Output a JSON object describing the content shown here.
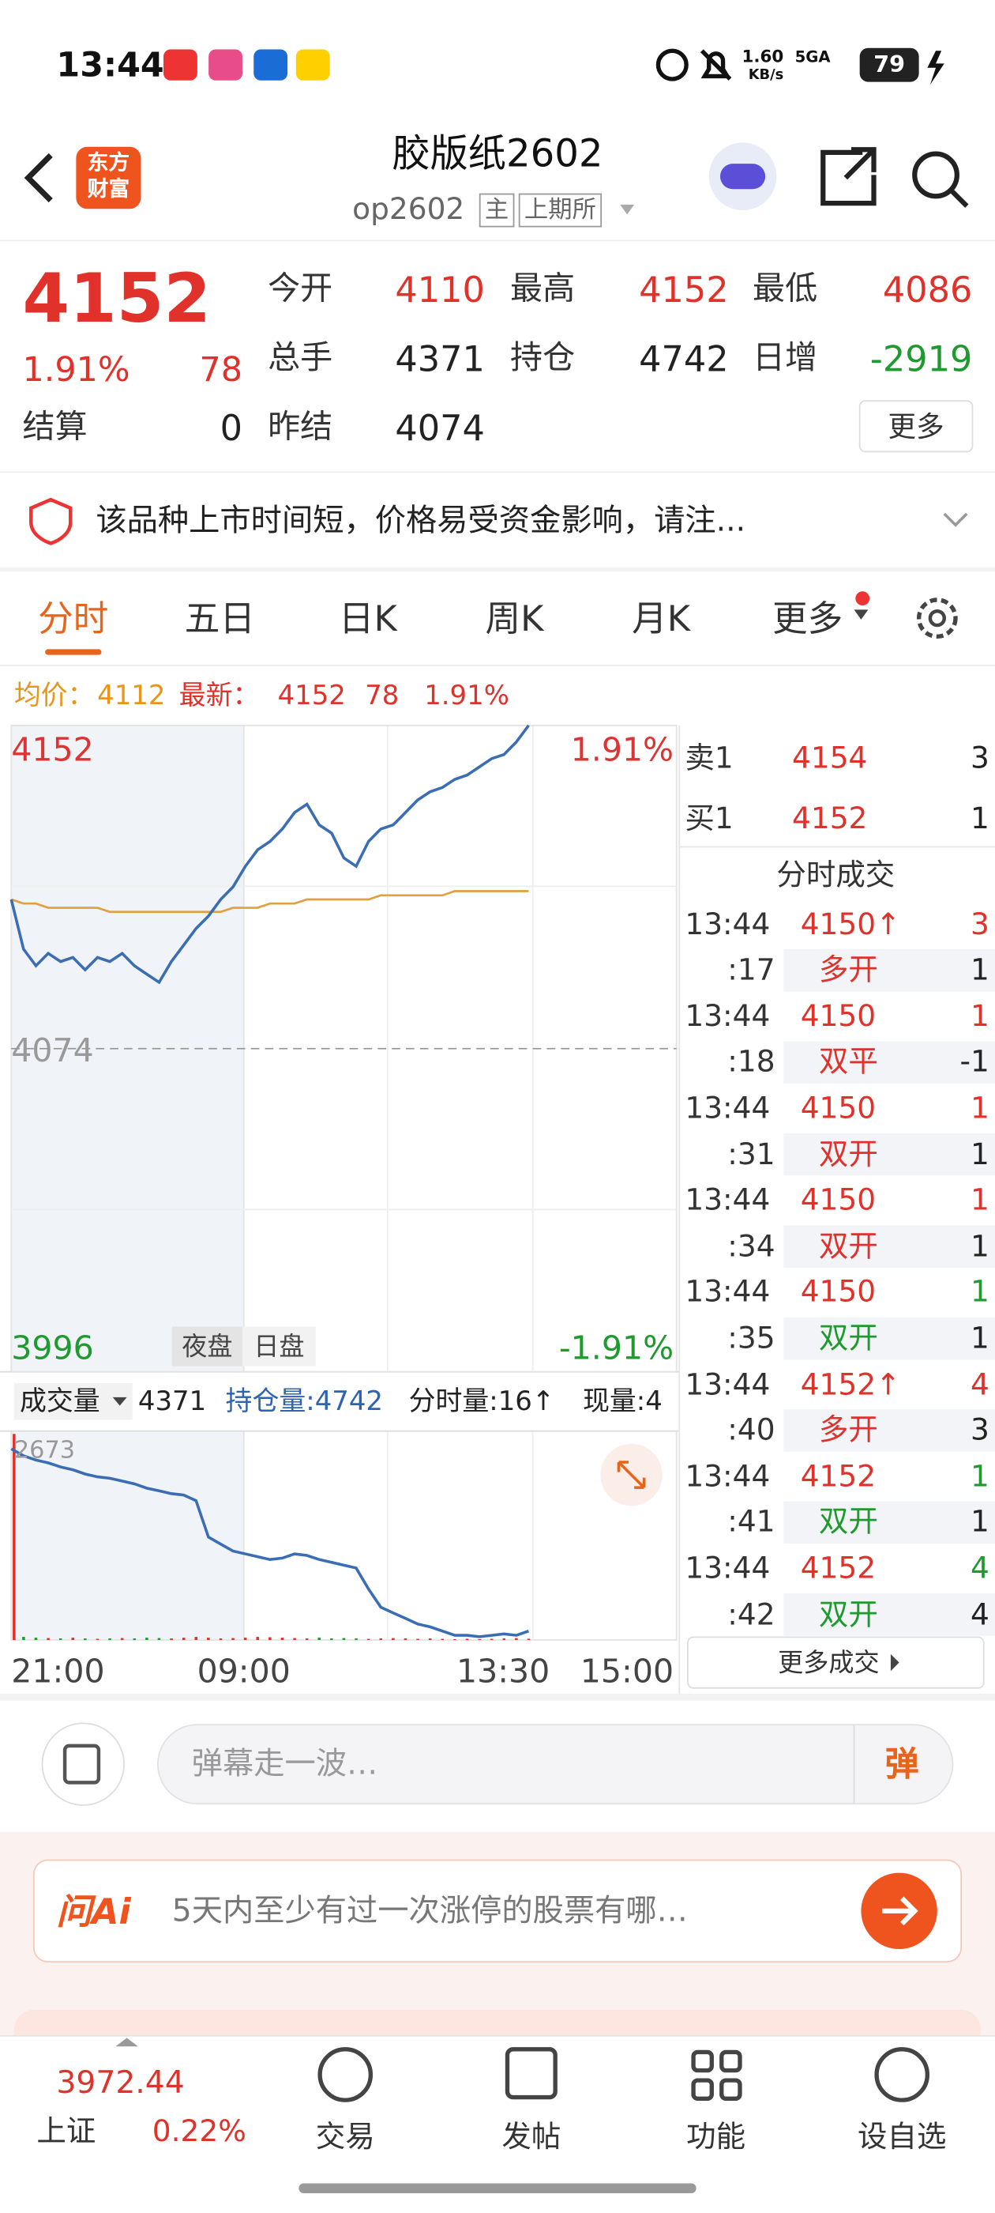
{
  "status_bar": {
    "time": "13:44",
    "speed": "1.60",
    "speed_unit": "KB/s",
    "network": "5GA",
    "battery": "79"
  },
  "header": {
    "logo": "东方财富",
    "title": "胶版纸2602",
    "code": "op2602",
    "tags": [
      "主",
      "上期所"
    ]
  },
  "quote": {
    "price": 4152,
    "change_pct": "1.91%",
    "change": 78,
    "fields": [
      {
        "label": "今开",
        "value": 4110,
        "color": "red"
      },
      {
        "label": "最高",
        "value": 4152,
        "color": "red"
      },
      {
        "label": "最低",
        "value": 4086,
        "color": "red"
      },
      {
        "label": "总手",
        "value": 4371,
        "color": "black"
      },
      {
        "label": "持仓",
        "value": 4742,
        "color": "black"
      },
      {
        "label": "日增",
        "value": -2919,
        "color": "green"
      },
      {
        "label": "结算",
        "value": 0,
        "color": "black"
      },
      {
        "label": "昨结",
        "value": 4074,
        "color": "black"
      }
    ],
    "more": "更多"
  },
  "notice": "该品种上市时间短，价格易受资金影响，请注...",
  "tabs": [
    "分时",
    "五日",
    "日K",
    "周K",
    "月K",
    "更多"
  ],
  "summary": {
    "avg_label": "均价：",
    "avg": 4112,
    "latest_label": "最新：",
    "latest": 4152,
    "change": 78,
    "change_pct": "1.91%"
  },
  "chart": {
    "type": "line",
    "ylim": [
      3996,
      4152
    ],
    "yticks": [
      4152,
      4074,
      3996
    ],
    "pct_top": "1.91%",
    "pct_bottom": "-1.91%",
    "sessions": [
      "夜盘",
      "日盘"
    ],
    "xticks": [
      "21:00",
      "09:00",
      "13:30",
      "15:00"
    ],
    "price": [
      4110,
      4098,
      4094,
      4097,
      4095,
      4096,
      4093,
      4096,
      4095,
      4097,
      4094,
      4092,
      4090,
      4095,
      4099,
      4103,
      4106,
      4110,
      4113,
      4118,
      4122,
      4124,
      4127,
      4131,
      4133,
      4128,
      4126,
      4120,
      4118,
      4124,
      4127,
      4128,
      4131,
      4134,
      4136,
      4137,
      4139,
      4140,
      4142,
      4144,
      4145,
      4148,
      4152
    ],
    "avg": [
      4110,
      4109,
      4109,
      4108,
      4108,
      4108,
      4108,
      4108,
      4107,
      4107,
      4107,
      4107,
      4107,
      4107,
      4107,
      4107,
      4107,
      4107,
      4108,
      4108,
      4108,
      4109,
      4109,
      4109,
      4110,
      4110,
      4110,
      4110,
      4110,
      4110,
      4111,
      4111,
      4111,
      4111,
      4111,
      4111,
      4112,
      4112,
      4112,
      4112,
      4112,
      4112,
      4112
    ],
    "volume_label": "成交量",
    "volume_total": 4371,
    "oi_label": "持仓量:4742",
    "tick_volume_label": "分时量:16↑",
    "current_volume_label": "现量:4",
    "volume_top": 2673,
    "volume": [
      2673,
      40,
      30,
      25,
      20,
      30,
      20,
      15,
      20,
      25,
      20,
      30,
      25,
      20,
      30,
      40,
      30,
      20,
      25,
      30,
      40,
      35,
      30,
      25,
      20,
      30,
      20,
      25,
      20,
      15,
      20,
      25,
      20,
      15,
      20,
      15,
      10,
      15,
      10,
      15,
      20,
      25,
      16
    ],
    "oi_lim": [
      4600,
      7900
    ],
    "oi": [
      7661,
      7549,
      7482,
      7437,
      7370,
      7325,
      7257,
      7213,
      7190,
      7145,
      7100,
      7033,
      6988,
      6943,
      6921,
      6831,
      6247,
      6135,
      6023,
      5978,
      5933,
      5888,
      5910,
      5978,
      5955,
      5888,
      5843,
      5798,
      5753,
      5417,
      5125,
      5035,
      4945,
      4855,
      4810,
      4742,
      4675,
      4675,
      4653,
      4675,
      4698,
      4675,
      4742
    ]
  },
  "order_book": {
    "sell": {
      "label": "卖1",
      "price": 4154,
      "qty": 3
    },
    "buy": {
      "label": "买1",
      "price": 4152,
      "qty": 1
    },
    "trades_title": "分时成交",
    "trades": [
      {
        "time": "13:44",
        "price": "4150↑",
        "qty": 3,
        "sec": ":17",
        "kind": "多开",
        "kind_qty": 1,
        "color": "red"
      },
      {
        "time": "13:44",
        "price": "4150",
        "qty": 1,
        "sec": ":18",
        "kind": "双平",
        "kind_qty": -1,
        "color": "red"
      },
      {
        "time": "13:44",
        "price": "4150",
        "qty": 1,
        "sec": ":31",
        "kind": "双开",
        "kind_qty": 1,
        "color": "red"
      },
      {
        "time": "13:44",
        "price": "4150",
        "qty": 1,
        "sec": ":34",
        "kind": "双开",
        "kind_qty": 1,
        "color": "red"
      },
      {
        "time": "13:44",
        "price": "4150",
        "qty": 1,
        "sec": ":35",
        "kind": "双开",
        "kind_qty": 1,
        "color": "green"
      },
      {
        "time": "13:44",
        "price": "4152↑",
        "qty": 4,
        "sec": ":40",
        "kind": "多开",
        "kind_qty": 3,
        "color": "red"
      },
      {
        "time": "13:44",
        "price": "4152",
        "qty": 1,
        "sec": ":41",
        "kind": "双开",
        "kind_qty": 1,
        "color": "green"
      },
      {
        "time": "13:44",
        "price": "4152",
        "qty": 4,
        "sec": ":42",
        "kind": "双开",
        "kind_qty": 4,
        "color": "green"
      }
    ],
    "more_trades": "更多成交"
  },
  "comment": {
    "placeholder": "弹幕走一波…",
    "button": "弹"
  },
  "ai": {
    "logo": "问Ai",
    "prompt": "5天内至少有过一次涨停的股票有哪…"
  },
  "bottom_nav": {
    "index_value": 3972.44,
    "index_name": "上证",
    "index_pct": "0.22%",
    "items": [
      "交易",
      "发帖",
      "功能",
      "设自选"
    ]
  }
}
